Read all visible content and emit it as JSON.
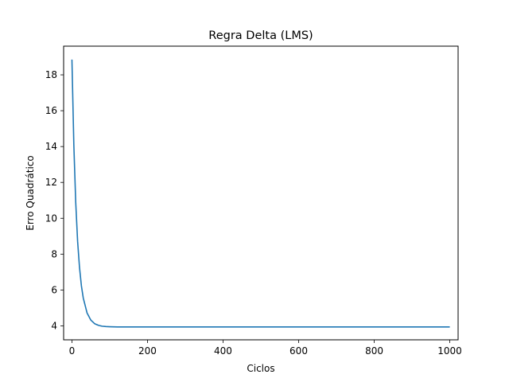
{
  "chart_data": {
    "type": "line",
    "title": "Regra Delta (LMS)",
    "xlabel": "Ciclos",
    "ylabel": "Erro Quadrático",
    "xlim": [
      -22,
      1022
    ],
    "ylim": [
      3.22,
      19.6
    ],
    "xticks": [
      0,
      200,
      400,
      600,
      800,
      1000
    ],
    "yticks": [
      4,
      6,
      8,
      10,
      12,
      14,
      16,
      18
    ],
    "grid": false,
    "series": [
      {
        "color": "#1f77b4",
        "x": [
          0,
          5,
          10,
          15,
          20,
          25,
          30,
          40,
          50,
          60,
          70,
          80,
          90,
          100,
          120,
          150,
          200,
          300,
          400,
          500,
          600,
          700,
          800,
          900,
          1000
        ],
        "y": [
          18.85,
          14.1,
          10.9,
          8.72,
          7.27,
          6.24,
          5.55,
          4.72,
          4.32,
          4.12,
          4.03,
          3.98,
          3.96,
          3.95,
          3.94,
          3.94,
          3.94,
          3.94,
          3.94,
          3.94,
          3.94,
          3.94,
          3.94,
          3.94,
          3.94
        ]
      }
    ]
  }
}
